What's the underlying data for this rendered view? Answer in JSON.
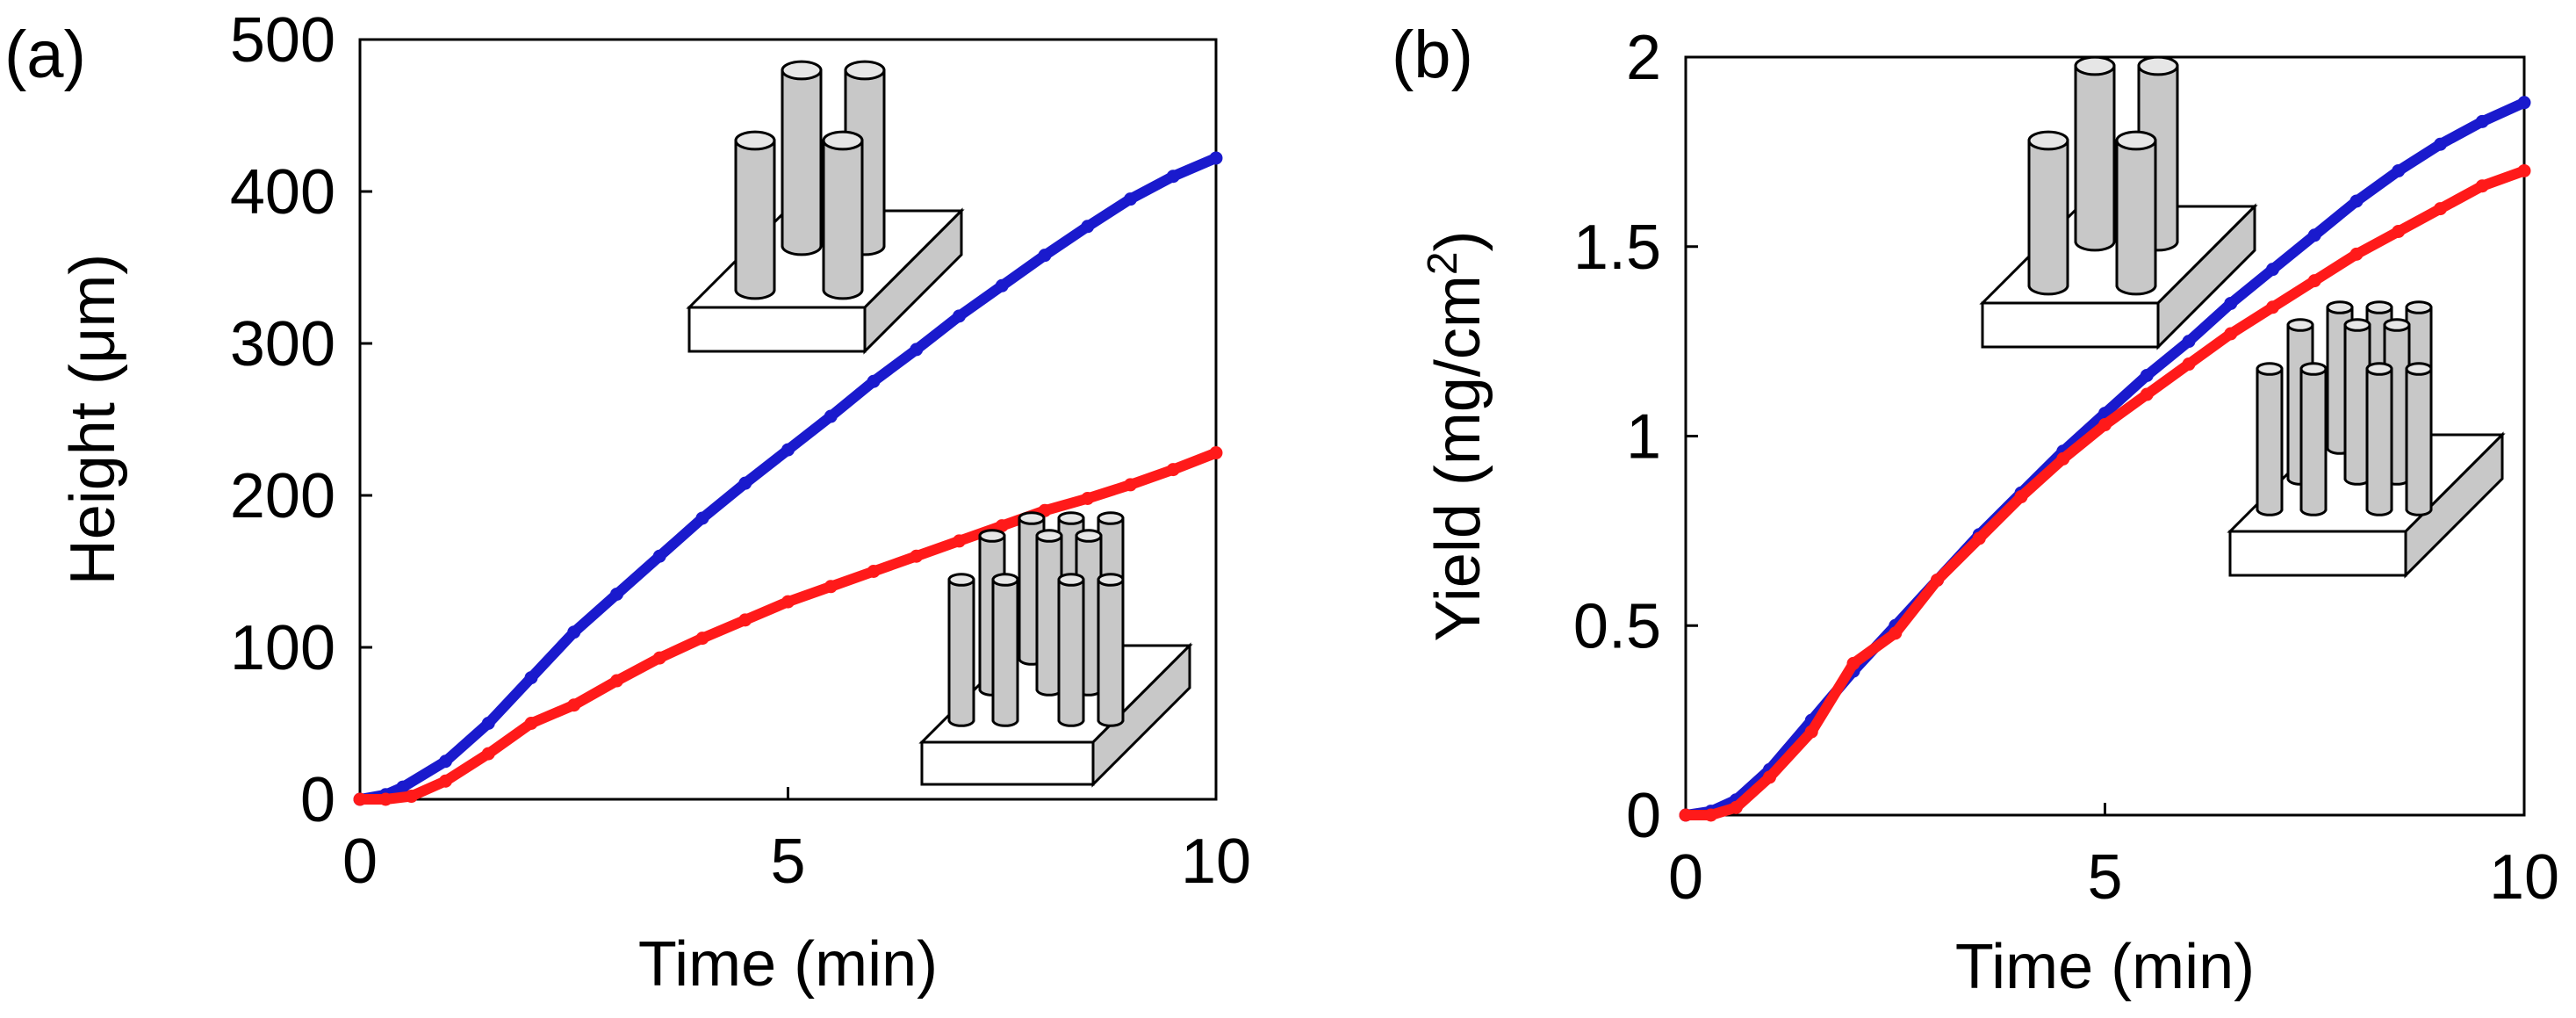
{
  "chart_data": [
    {
      "type": "scatter",
      "panel_label": "(a)",
      "xlabel": "Time (min)",
      "ylabel": "Height (μm)",
      "xlim": [
        0,
        10
      ],
      "ylim": [
        0,
        500
      ],
      "x_ticks": [
        0,
        5,
        10
      ],
      "y_ticks": [
        0,
        100,
        200,
        300,
        400,
        500
      ],
      "x_tick_labels": [
        "0",
        "5",
        "10"
      ],
      "y_tick_labels": [
        "0",
        "100",
        "200",
        "300",
        "400",
        "500"
      ],
      "series": [
        {
          "name": "blue",
          "color": "#1a1acd",
          "x": [
            0,
            0.3,
            0.5,
            1.0,
            1.5,
            2.0,
            2.5,
            3.0,
            3.5,
            4.0,
            4.5,
            5.0,
            5.5,
            6.0,
            6.5,
            7.0,
            7.5,
            8.0,
            8.5,
            9.0,
            9.5,
            10.0
          ],
          "y": [
            0,
            3,
            8,
            25,
            50,
            80,
            110,
            135,
            160,
            185,
            208,
            230,
            252,
            275,
            296,
            318,
            338,
            358,
            377,
            395,
            410,
            422
          ]
        },
        {
          "name": "red",
          "color": "#ff1a1a",
          "x": [
            0,
            0.3,
            0.6,
            1.0,
            1.5,
            2.0,
            2.5,
            3.0,
            3.5,
            4.0,
            4.5,
            5.0,
            5.5,
            6.0,
            6.5,
            7.0,
            7.5,
            8.0,
            8.5,
            9.0,
            9.5,
            10.0
          ],
          "y": [
            0,
            0,
            2,
            12,
            30,
            50,
            62,
            78,
            93,
            106,
            118,
            130,
            140,
            150,
            160,
            170,
            180,
            190,
            198,
            207,
            217,
            228
          ]
        }
      ]
    },
    {
      "type": "scatter",
      "panel_label": "(b)",
      "xlabel": "Time (min)",
      "ylabel": "Yield (mg/cm",
      "ylabel_sup": "2",
      "ylabel_end": ")",
      "xlim": [
        0,
        10
      ],
      "ylim": [
        0,
        2
      ],
      "x_ticks": [
        0,
        5,
        10
      ],
      "y_ticks": [
        0,
        0.5,
        1,
        1.5,
        2
      ],
      "x_tick_labels": [
        "0",
        "5",
        "10"
      ],
      "y_tick_labels": [
        "0",
        "0.5",
        "1",
        "1.5",
        "2"
      ],
      "series": [
        {
          "name": "blue",
          "color": "#1a1acd",
          "x": [
            0,
            0.3,
            0.6,
            1.0,
            1.5,
            2.0,
            2.5,
            3.0,
            3.5,
            4.0,
            4.5,
            5.0,
            5.5,
            6.0,
            6.5,
            7.0,
            7.5,
            8.0,
            8.5,
            9.0,
            9.5,
            10.0
          ],
          "y": [
            0,
            0.01,
            0.04,
            0.12,
            0.25,
            0.38,
            0.5,
            0.62,
            0.74,
            0.85,
            0.96,
            1.06,
            1.16,
            1.25,
            1.35,
            1.44,
            1.53,
            1.62,
            1.7,
            1.77,
            1.83,
            1.88
          ]
        },
        {
          "name": "red",
          "color": "#ff1a1a",
          "x": [
            0,
            0.3,
            0.6,
            1.0,
            1.5,
            2.0,
            2.5,
            3.0,
            3.5,
            4.0,
            4.5,
            5.0,
            5.5,
            6.0,
            6.5,
            7.0,
            7.5,
            8.0,
            8.5,
            9.0,
            9.5,
            10.0
          ],
          "y": [
            0,
            0,
            0.02,
            0.1,
            0.22,
            0.4,
            0.48,
            0.62,
            0.73,
            0.84,
            0.94,
            1.03,
            1.11,
            1.19,
            1.27,
            1.34,
            1.41,
            1.48,
            1.54,
            1.6,
            1.66,
            1.7
          ]
        }
      ]
    }
  ],
  "insets": [
    {
      "description_icon": "sparse-thick-pillar-array-icon"
    },
    {
      "description_icon": "dense-thin-pillar-array-icon"
    }
  ]
}
